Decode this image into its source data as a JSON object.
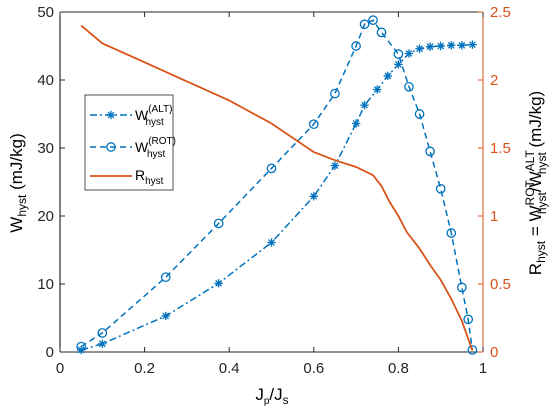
{
  "chart_data": {
    "type": "line",
    "x_axis": {
      "label_main": "J",
      "label_sub1": "p",
      "label_mid": "/J",
      "label_sub2": "s",
      "range": [
        0,
        1
      ],
      "ticks": [
        0,
        0.2,
        0.4,
        0.6,
        0.8,
        1
      ],
      "tick_labels": [
        "0",
        "0.2",
        "0.4",
        "0.6",
        "0.8",
        "1"
      ]
    },
    "y_left": {
      "label_main": "W",
      "label_sub": "hyst",
      "label_unit": " (mJ/kg)",
      "range": [
        0,
        50
      ],
      "ticks": [
        0,
        10,
        20,
        30,
        40,
        50
      ],
      "tick_labels": [
        "0",
        "10",
        "20",
        "30",
        "40",
        "50"
      ],
      "color": "#000000"
    },
    "y_right": {
      "label_r": "R",
      "label_r_sub": "hyst",
      "label_eq": " = W",
      "label_w1_sup": "ROT",
      "label_w1_sub": "hyst",
      "label_slash": "/W",
      "label_w2_sup": "ALT",
      "label_w2_sub": "hyst",
      "label_unit": " (mJ/kg)",
      "range": [
        0,
        2.5
      ],
      "ticks": [
        0,
        0.5,
        1,
        1.5,
        2,
        2.5
      ],
      "tick_labels": [
        "0",
        "0.5",
        "1",
        "1.5",
        "2",
        "2.5"
      ],
      "color": "#D95319"
    },
    "series": [
      {
        "name_main": "W",
        "name_sup": "(ALT)",
        "name_sub": "hyst",
        "axis": "left",
        "color": "#0072BD",
        "line_style": "dashdot",
        "marker": "asterisk",
        "x": [
          0.05,
          0.1,
          0.25,
          0.375,
          0.5,
          0.6,
          0.65,
          0.7,
          0.72,
          0.75,
          0.775,
          0.8,
          0.825,
          0.85,
          0.875,
          0.9,
          0.925,
          0.95,
          0.975
        ],
        "y": [
          0.3,
          1.2,
          5.3,
          10.1,
          16.1,
          22.9,
          27.4,
          33.6,
          36.3,
          38.6,
          40.6,
          42.3,
          43.9,
          44.6,
          44.9,
          45.0,
          45.1,
          45.1,
          45.2
        ]
      },
      {
        "name_main": "W",
        "name_sup": "(ROT)",
        "name_sub": "hyst",
        "axis": "left",
        "color": "#0072BD",
        "line_style": "dashed",
        "marker": "circle",
        "x": [
          0.05,
          0.1,
          0.25,
          0.375,
          0.5,
          0.6,
          0.65,
          0.7,
          0.72,
          0.74,
          0.76,
          0.8,
          0.825,
          0.85,
          0.875,
          0.9,
          0.925,
          0.95,
          0.965,
          0.975
        ],
        "y": [
          0.8,
          2.8,
          11.0,
          18.9,
          27.0,
          33.5,
          38.0,
          45.0,
          48.2,
          48.8,
          47.0,
          43.8,
          39.0,
          35.0,
          29.5,
          24.0,
          17.5,
          9.5,
          4.8,
          0.3
        ]
      },
      {
        "name_main": "R",
        "name_sub": "hyst",
        "axis": "right",
        "color": "#D95319",
        "line_style": "solid",
        "marker": "none",
        "x": [
          0.05,
          0.1,
          0.2,
          0.3,
          0.4,
          0.5,
          0.6,
          0.65,
          0.7,
          0.74,
          0.76,
          0.78,
          0.8,
          0.82,
          0.85,
          0.875,
          0.9,
          0.925,
          0.95,
          0.975
        ],
        "y": [
          2.4,
          2.27,
          2.13,
          1.99,
          1.85,
          1.68,
          1.47,
          1.41,
          1.36,
          1.3,
          1.22,
          1.1,
          1.0,
          0.88,
          0.76,
          0.64,
          0.53,
          0.39,
          0.23,
          0.01
        ]
      }
    ],
    "legend_position": "left-middle",
    "grid": false
  }
}
